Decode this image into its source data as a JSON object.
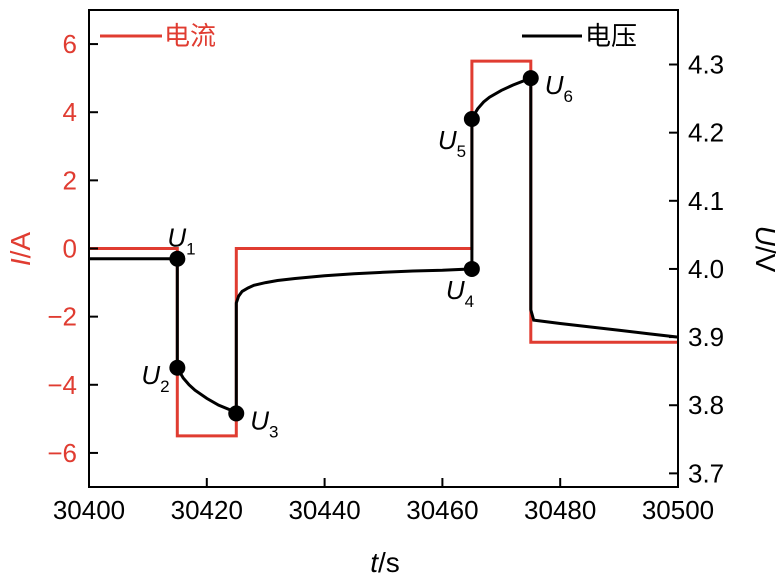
{
  "chart_data": {
    "type": "line",
    "x": {
      "label_var": "t",
      "label_unit": "/s",
      "range": [
        30400,
        30500
      ],
      "ticks": [
        30400,
        30420,
        30440,
        30460,
        30480,
        30500
      ]
    },
    "y_left": {
      "label_var": "I",
      "label_unit": "/A",
      "range": [
        -7,
        7
      ],
      "ticks": [
        -6,
        -4,
        -2,
        0,
        2,
        4,
        6
      ],
      "tick_labels": [
        "−6",
        "−4",
        "−2",
        "0",
        "2",
        "4",
        "6"
      ],
      "color": "#e03c31"
    },
    "y_right": {
      "label_var": "U",
      "label_unit": "/V",
      "range": [
        3.68,
        4.38
      ],
      "ticks": [
        3.7,
        3.8,
        3.9,
        4.0,
        4.1,
        4.2,
        4.3
      ],
      "tick_labels": [
        "3.7",
        "3.8",
        "3.9",
        "4.0",
        "4.1",
        "4.2",
        "4.3"
      ],
      "color": "#000000"
    },
    "legend": {
      "current": "电流",
      "voltage": "电压",
      "placement": "top"
    },
    "series": [
      {
        "name": "电流",
        "axis": "left",
        "color": "#e03c31",
        "x": [
          30400,
          30415,
          30415,
          30425,
          30425,
          30465,
          30465,
          30475,
          30475,
          30500
        ],
        "y": [
          0,
          0,
          -5.5,
          -5.5,
          0,
          0,
          5.5,
          5.5,
          -2.75,
          -2.75
        ]
      },
      {
        "name": "电压",
        "axis": "right",
        "color": "#000000",
        "x": [
          30400,
          30415,
          30415,
          30416,
          30417,
          30418,
          30420,
          30422,
          30424,
          30425,
          30425,
          30425.4,
          30426,
          30427,
          30428,
          30430,
          30432,
          30435,
          30440,
          30445,
          30450,
          30455,
          30460,
          30465,
          30465,
          30465.5,
          30466,
          30467,
          30468,
          30470,
          30472,
          30475,
          30475,
          30475.5,
          30480,
          30485,
          30490,
          30495,
          30500
        ],
        "y": [
          4.015,
          4.015,
          3.855,
          3.84,
          3.83,
          3.822,
          3.81,
          3.8,
          3.793,
          3.788,
          3.95,
          3.96,
          3.967,
          3.972,
          3.976,
          3.98,
          3.983,
          3.986,
          3.99,
          3.993,
          3.995,
          3.997,
          3.998,
          4.0,
          4.22,
          4.228,
          4.235,
          4.245,
          4.252,
          4.262,
          4.27,
          4.28,
          3.94,
          3.925,
          3.92,
          3.915,
          3.91,
          3.905,
          3.9
        ]
      }
    ],
    "points": [
      {
        "main": "U",
        "sub": "1",
        "x": 30415,
        "y": 4.015
      },
      {
        "main": "U",
        "sub": "2",
        "x": 30415,
        "y": 3.855
      },
      {
        "main": "U",
        "sub": "3",
        "x": 30425,
        "y": 3.788
      },
      {
        "main": "U",
        "sub": "4",
        "x": 30465,
        "y": 4.0
      },
      {
        "main": "U",
        "sub": "5",
        "x": 30465,
        "y": 4.22
      },
      {
        "main": "U",
        "sub": "6",
        "x": 30475,
        "y": 4.28
      }
    ],
    "grid": false
  }
}
